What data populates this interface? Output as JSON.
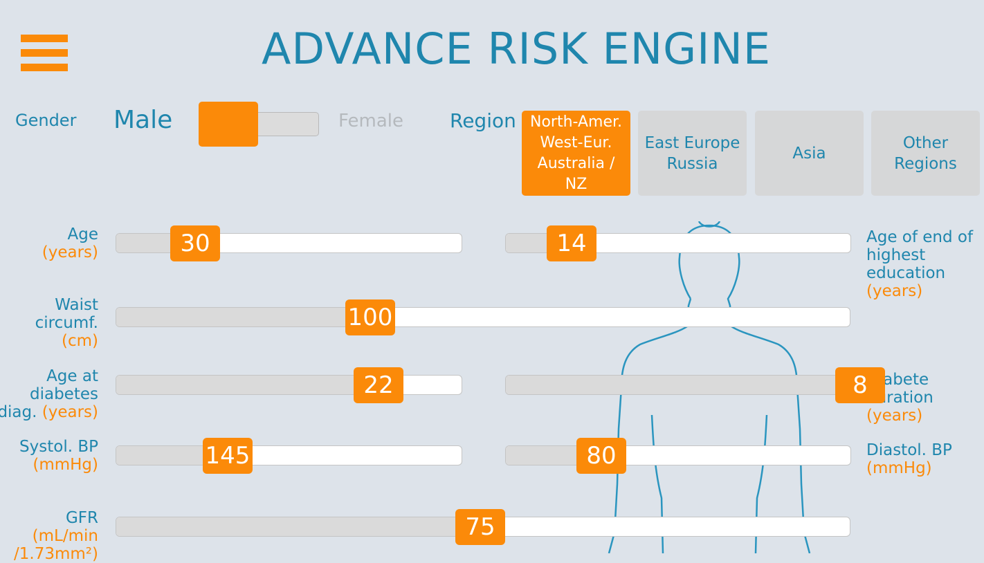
{
  "app": {
    "title": "ADVANCE RISK ENGINE"
  },
  "gender": {
    "label": "Gender",
    "male": "Male",
    "female": "Female",
    "selected": "Male"
  },
  "region": {
    "label": "Region",
    "options": [
      {
        "label": "North-Amer.\nWest-Eur.\nAustralia /\nNZ",
        "selected": true
      },
      {
        "label": "East Europe\nRussia",
        "selected": false
      },
      {
        "label": "Asia",
        "selected": false
      },
      {
        "label": "Other\nRegions",
        "selected": false
      }
    ]
  },
  "sliders": {
    "age": {
      "label": "Age",
      "unit": "(years)",
      "value": "30"
    },
    "education": {
      "label_lines": [
        "Age of end of",
        "highest",
        "education"
      ],
      "unit": "(years)",
      "value": "14"
    },
    "waist": {
      "label_lines": [
        "Waist",
        "circumf."
      ],
      "unit": "(cm)",
      "value": "100"
    },
    "diag_age": {
      "label_lines": [
        "Age at",
        "diabetes"
      ],
      "prefix": "diag.",
      "unit": "(years)",
      "value": "22"
    },
    "duration": {
      "label_lines": [
        "Diabete",
        "duration"
      ],
      "unit": "(years)",
      "value": "8"
    },
    "systolic": {
      "label": "Systol. BP",
      "unit": "(mmHg)",
      "value": "145"
    },
    "diastolic": {
      "label": "Diastol. BP",
      "unit": "(mmHg)",
      "value": "80"
    },
    "gfr": {
      "label": "GFR",
      "unit": "(mL/min",
      "unit2": "/1.73mm²)",
      "value": "75"
    }
  },
  "colors": {
    "accent": "#fb8a09",
    "primary": "#1f86ad",
    "background": "#dde3ea"
  }
}
